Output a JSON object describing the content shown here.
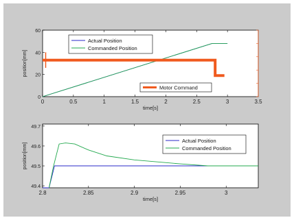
{
  "chart_data": [
    {
      "type": "line",
      "xlabel": "time[s]",
      "ylabel": "position[mm]",
      "ylabel_right": "",
      "xlim": [
        0,
        3.5
      ],
      "ylim": [
        0,
        60
      ],
      "xticks": [
        "0",
        "0.5",
        "1",
        "1.5",
        "2",
        "2.5",
        "3",
        "3.5"
      ],
      "yticks": [
        "0",
        "20",
        "40",
        "60"
      ],
      "series": [
        {
          "name": "Actual Position",
          "color": "#2929c8",
          "x": [
            0,
            2.75,
            3.0
          ],
          "y": [
            0,
            48,
            48
          ]
        },
        {
          "name": "Commanded Position",
          "color": "#21a84d",
          "x": [
            0,
            2.75,
            3.0
          ],
          "y": [
            0,
            48,
            48
          ]
        },
        {
          "name": "Motor Command",
          "color": "#f05a1e",
          "axis": "right",
          "x": [
            0,
            0.05,
            0.05,
            2.8,
            2.8,
            2.95
          ],
          "y": [
            33,
            33,
            33,
            33,
            19,
            19
          ]
        }
      ],
      "legend": "top-left",
      "legend2": "bottom-right"
    },
    {
      "type": "line",
      "xlabel": "time[s]",
      "ylabel": "position[mm]",
      "xlim": [
        2.8,
        3.035
      ],
      "ylim": [
        49.39,
        49.71
      ],
      "xticks": [
        "2.8",
        "2.85",
        "2.9",
        "2.95",
        "3"
      ],
      "yticks": [
        "49.4",
        "49.5",
        "49.6",
        "49.7"
      ],
      "series": [
        {
          "name": "Actual Position",
          "color": "#2929c8",
          "x": [
            2.8,
            2.807,
            2.813,
            3.035
          ],
          "y": [
            49.36,
            49.39,
            49.5,
            49.5
          ]
        },
        {
          "name": "Commanded Position",
          "color": "#21a84d",
          "x": [
            2.807,
            2.812,
            2.818,
            2.825,
            2.835,
            2.85,
            2.87,
            2.9,
            2.95,
            2.98,
            3.035
          ],
          "y": [
            49.39,
            49.5,
            49.61,
            49.615,
            49.61,
            49.58,
            49.55,
            49.53,
            49.51,
            49.5,
            49.5
          ]
        }
      ],
      "legend": "top-right"
    }
  ]
}
